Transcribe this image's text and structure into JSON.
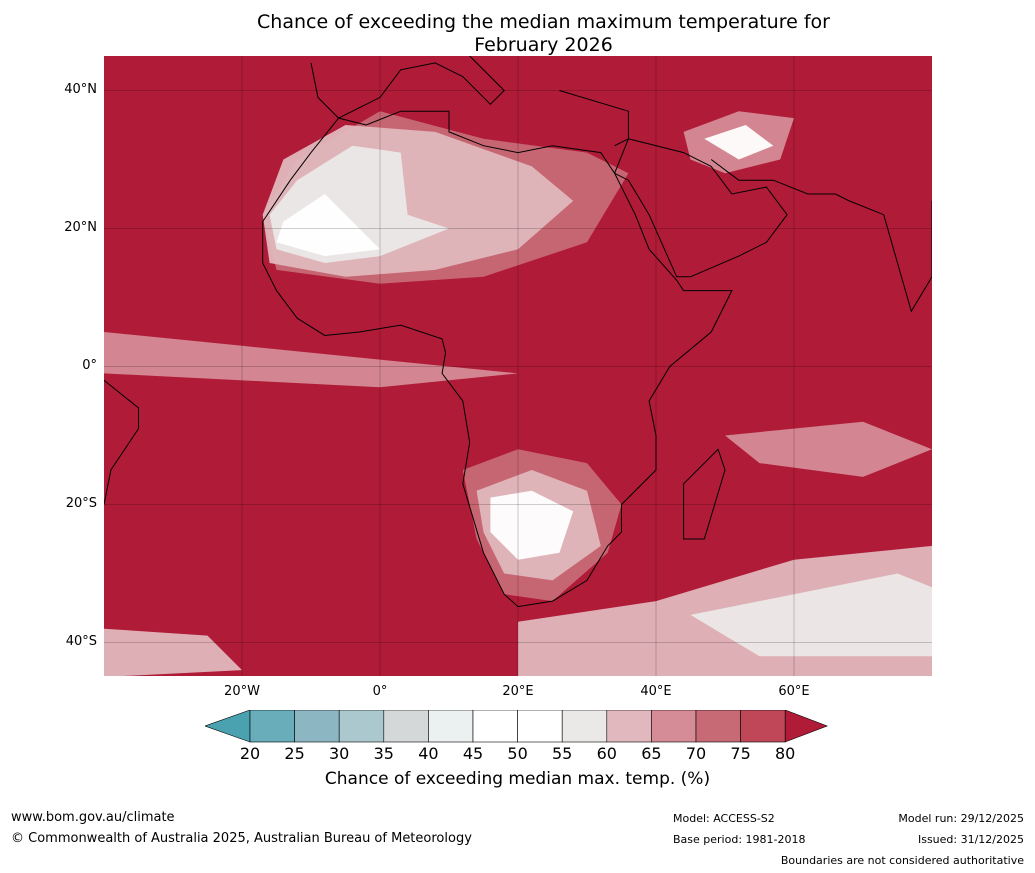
{
  "title_line1": "Chance of exceeding the median maximum temperature for",
  "title_line2": "February 2026",
  "lat_labels": [
    "40°N",
    "20°N",
    "0°",
    "20°S",
    "40°S"
  ],
  "lon_labels": [
    "20°W",
    "0°",
    "20°E",
    "40°E",
    "60°E"
  ],
  "colorbar": {
    "ticks": [
      "20",
      "25",
      "30",
      "35",
      "40",
      "45",
      "50",
      "55",
      "60",
      "65",
      "70",
      "75",
      "80"
    ],
    "colors": [
      "#4aa2b0",
      "#68adb9",
      "#8bb6c2",
      "#aac8cd",
      "#d5d8d9",
      "#ebf0f1",
      "#ffffff",
      "#ffffff",
      "#ebe9e8",
      "#e0b8bd",
      "#d58c96",
      "#c86a76",
      "#bf4757",
      "#b01b38"
    ],
    "label": "Chance of exceeding median max. temp. (%)"
  },
  "colors": {
    "base": "#b01b38",
    "light_pink": "#e0b8bd",
    "mid_pink": "#d58c96",
    "deep_pink": "#c86a76"
  },
  "footer": {
    "website": "www.bom.gov.au/climate",
    "copyright": "© Commonwealth of Australia 2025, Australian Bureau of Meteorology",
    "model": "Model: ACCESS-S2",
    "base_period": "Base period: 1981-2018",
    "model_run": "Model run: 29/12/2025",
    "issued": "Issued: 31/12/2025",
    "disclaimer": "Boundaries are not considered authoritative"
  }
}
